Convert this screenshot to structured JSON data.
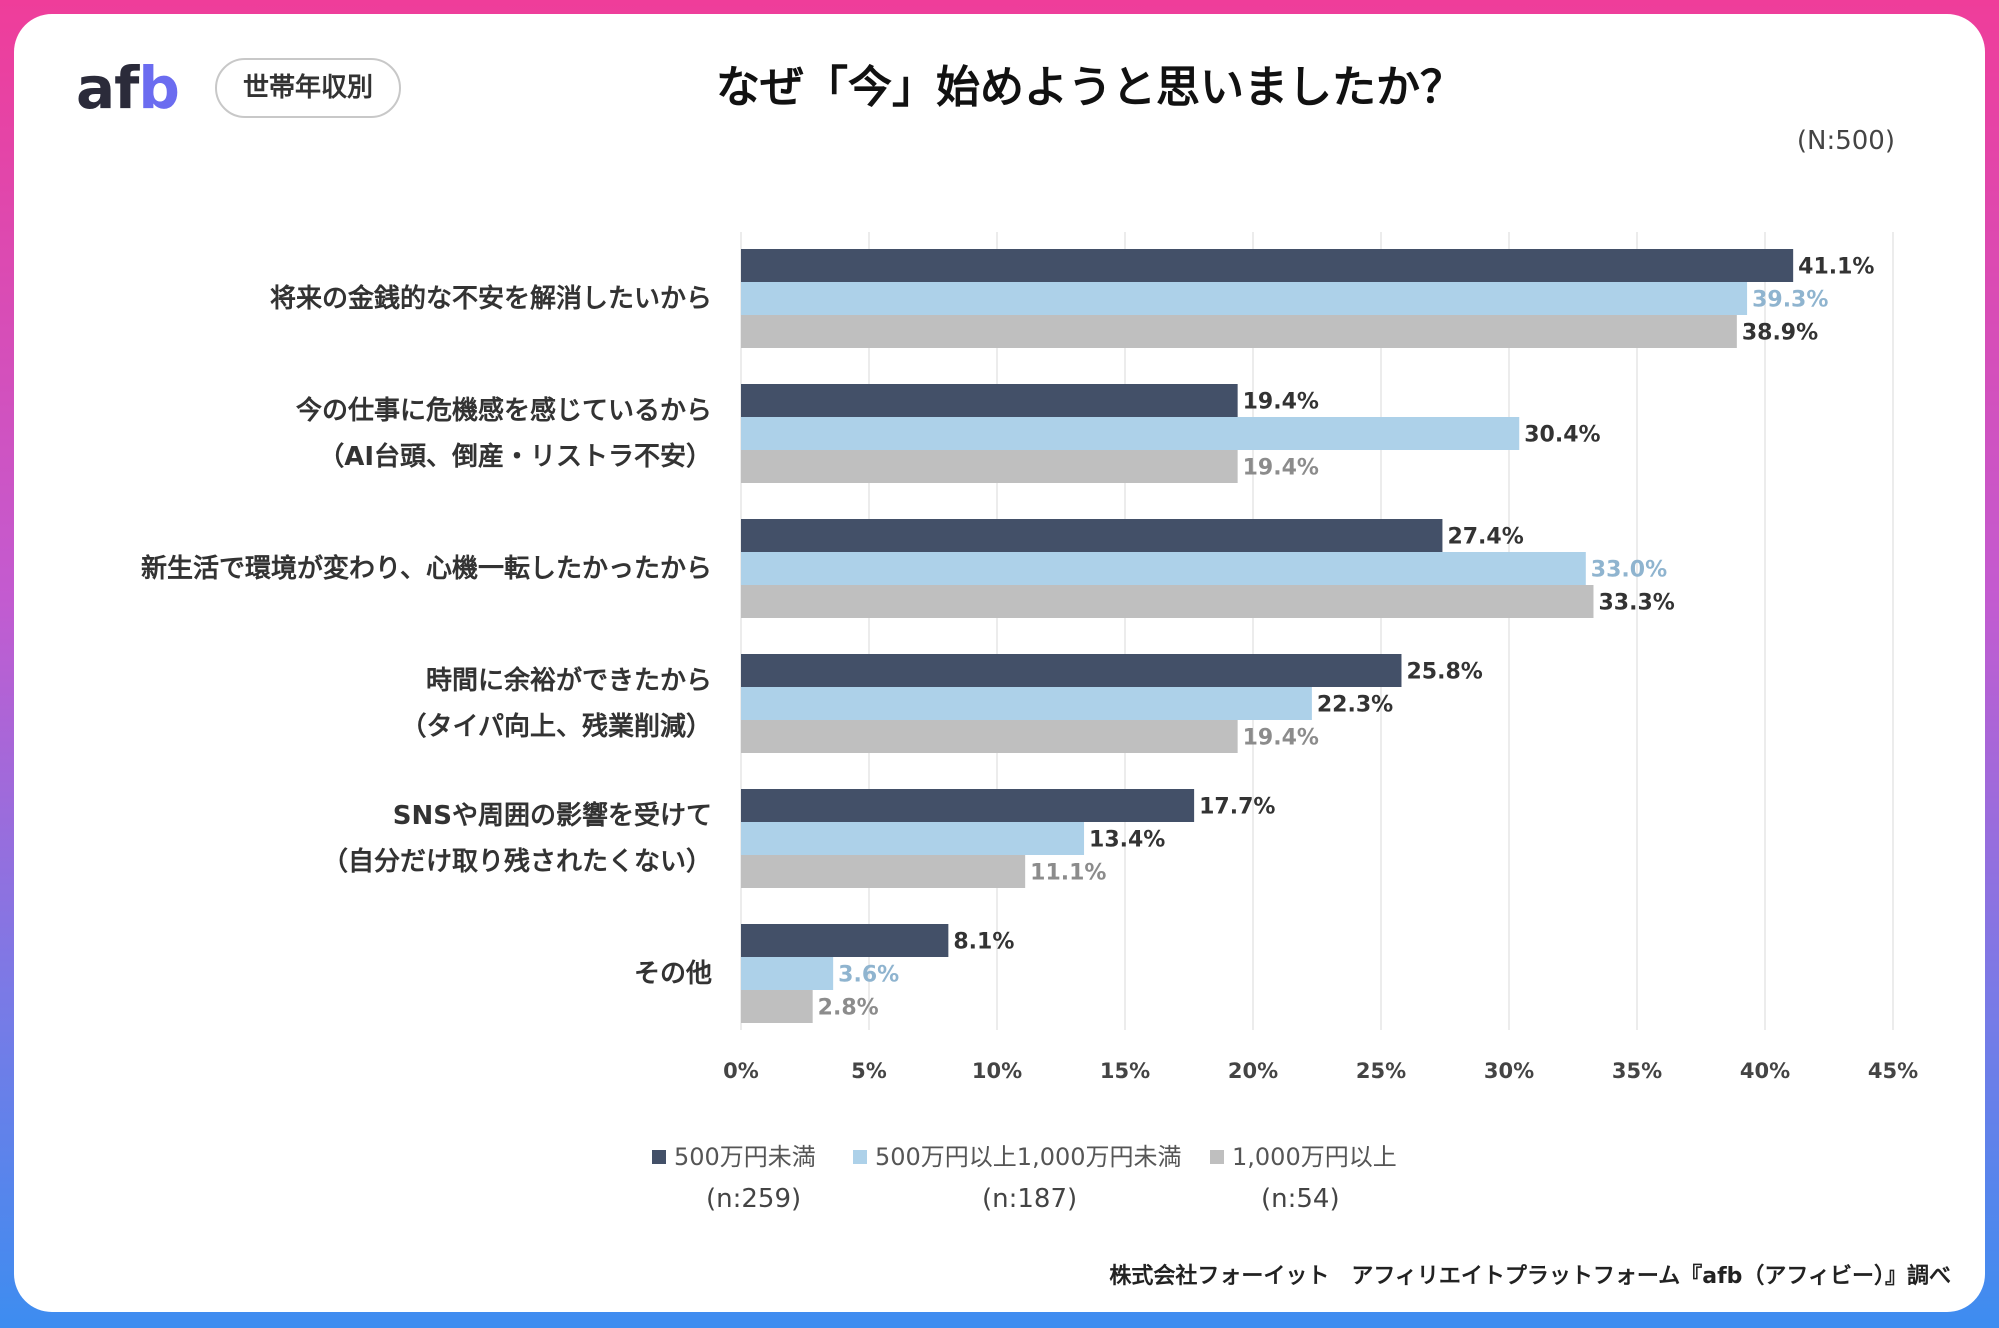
{
  "logo": {
    "a_f": "af",
    "b": "b"
  },
  "badge": "世帯年収別",
  "title": "なぜ「今」始めようと思いましたか？",
  "n_total": "(N:500)",
  "footer": "株式会社フォーイット　アフィリエイトプラットフォーム『afb（アフィビー）』調べ",
  "colors": {
    "series1": "#435068",
    "series2": "#add1e9",
    "series3": "#bfbfbf",
    "label_series2": "#8fb4cf",
    "label_series3": "#8c8c8c"
  },
  "chart_data": {
    "type": "bar",
    "orientation": "horizontal",
    "categories": [
      [
        "将来の金銭的な不安を解消したいから"
      ],
      [
        "今の仕事に危機感を感じているから",
        "（AI台頭、倒産・リストラ不安）"
      ],
      [
        "新生活で環境が変わり、心機一転したかったから"
      ],
      [
        "時間に余裕ができたから",
        "（タイパ向上、残業削減）"
      ],
      [
        "SNSや周囲の影響を受けて",
        "（自分だけ取り残されたくない）"
      ],
      [
        "その他"
      ]
    ],
    "series": [
      {
        "name": "500万円未満",
        "n": "(n:259)",
        "values": [
          41.1,
          19.4,
          27.4,
          25.8,
          17.7,
          8.1
        ],
        "labels": [
          "41.1%",
          "19.4%",
          "27.4%",
          "25.8%",
          "17.7%",
          "8.1%"
        ]
      },
      {
        "name": "500万円以上1,000万円未満",
        "n": "(n:187)",
        "values": [
          39.3,
          30.4,
          33.0,
          22.3,
          13.4,
          3.6
        ],
        "labels": [
          "39.3%",
          "30.4%",
          "33.0%",
          "22.3%",
          "13.4%",
          "3.6%"
        ]
      },
      {
        "name": "1,000万円以上",
        "n": "(n:54)",
        "values": [
          38.9,
          19.4,
          33.3,
          19.4,
          11.1,
          2.8
        ],
        "labels": [
          "38.9%",
          "19.4%",
          "33.3%",
          "19.4%",
          "11.1%",
          "2.8%"
        ]
      }
    ],
    "xlim": [
      0,
      45
    ],
    "xticks": [
      0,
      5,
      10,
      15,
      20,
      25,
      30,
      35,
      40,
      45
    ],
    "xtick_labels": [
      "0%",
      "5%",
      "10%",
      "15%",
      "20%",
      "25%",
      "30%",
      "35%",
      "40%",
      "45%"
    ],
    "grid": true,
    "legend": "bottom"
  }
}
